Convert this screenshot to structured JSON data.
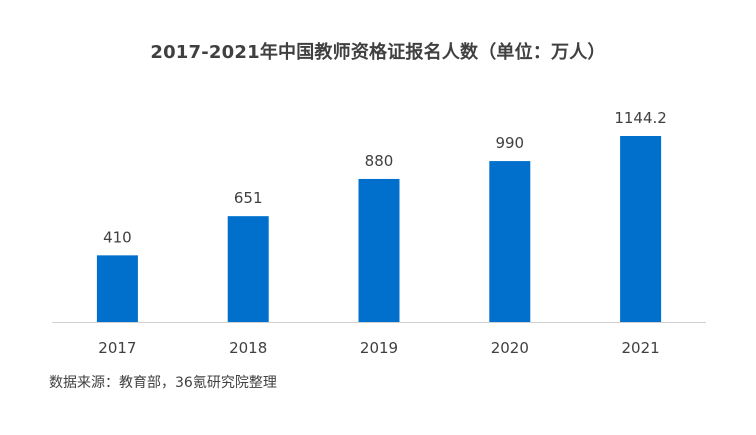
{
  "chart_title": "2017-2021年中国教师资格证报名人数（单位：万人）",
  "source_note": "数据来源：教育部，36氪研究院整理",
  "colors": {
    "bar": "#0070CC",
    "axis": "#D0D0D0",
    "text": "#404040"
  },
  "chart_data": {
    "type": "bar",
    "title": "2017-2021年中国教师资格证报名人数（单位：万人）",
    "categories": [
      "2017",
      "2018",
      "2019",
      "2020",
      "2021"
    ],
    "values": [
      410,
      651,
      880,
      990,
      1144.2
    ],
    "data_labels": [
      "410",
      "651",
      "880",
      "990",
      "1144.2"
    ],
    "xlabel": "",
    "ylabel": "",
    "ylim": [
      0,
      1144.2
    ],
    "grid": false,
    "legend": "none"
  }
}
